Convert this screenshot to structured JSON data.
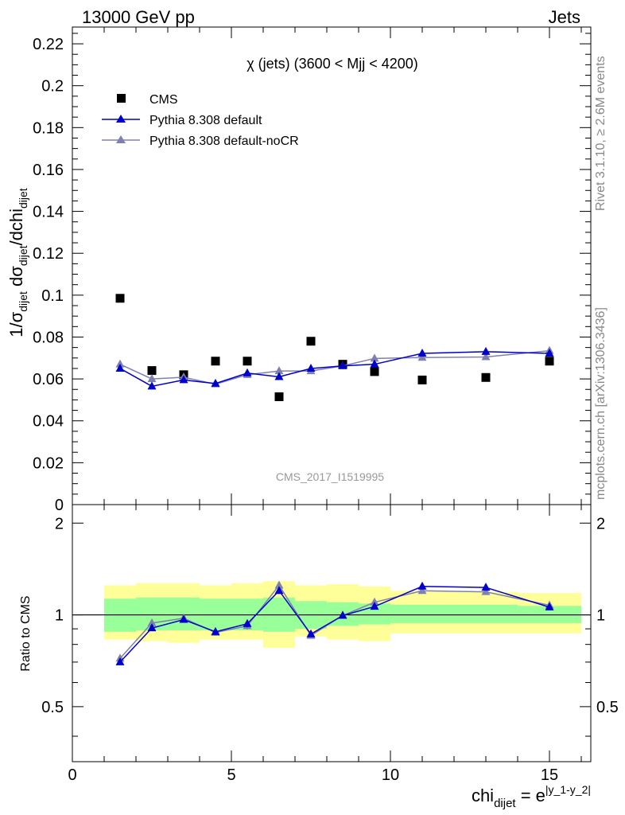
{
  "header": {
    "left": "13000 GeV pp",
    "right": "Jets"
  },
  "side": {
    "rivet": "Rivet 3.1.10, ≥ 2.6M events",
    "mcplots": "mcplots.cern.ch [arXiv:1306.3436]"
  },
  "chart_data": {
    "type": "scatter",
    "title": "χ (jets) (3600 < Mjj < 4200)",
    "watermark": "CMS_2017_I1519995",
    "ylabel_main": {
      "prefix": "1/σ",
      "sub1": "dijet",
      "mid": " dσ",
      "sub2": "dijet",
      "suffix": "/dchi",
      "sub3": "dijet"
    },
    "ylabel_ratio": "Ratio to CMS",
    "xlabel": {
      "base": "chi",
      "sub": "dijet",
      "eq": " = e",
      "sup": "|y_1-y_2|"
    },
    "xlim": [
      0,
      16.3
    ],
    "ylim_main": [
      0,
      0.228
    ],
    "ylim_ratio": [
      0.33,
      2.3
    ],
    "ratio_log_scale": true,
    "xticks": [
      0,
      5,
      10,
      15
    ],
    "xtick_labels": [
      "0",
      "5",
      "10",
      "15"
    ],
    "yticks_main": [
      0,
      0.02,
      0.04,
      0.06,
      0.08,
      0.1,
      0.12,
      0.14,
      0.16,
      0.18,
      0.2,
      0.22
    ],
    "ytick_labels_main": [
      "0",
      "0.02",
      "0.04",
      "0.06",
      "0.08",
      "0.1",
      "0.12",
      "0.14",
      "0.16",
      "0.18",
      "0.2",
      "0.22"
    ],
    "yticks_ratio": [
      0.5,
      1,
      2
    ],
    "ytick_labels_ratio": [
      "0.5",
      "1",
      "2"
    ],
    "legend_position": "top-left",
    "bins": [
      [
        1,
        2
      ],
      [
        2,
        3
      ],
      [
        3,
        4
      ],
      [
        4,
        5
      ],
      [
        5,
        6
      ],
      [
        6,
        7
      ],
      [
        7,
        8
      ],
      [
        8,
        9
      ],
      [
        9,
        10
      ],
      [
        10,
        12
      ],
      [
        12,
        14
      ],
      [
        14,
        16
      ]
    ],
    "ratio_band_inner": [
      [
        0.88,
        1.13
      ],
      [
        0.89,
        1.14
      ],
      [
        0.89,
        1.14
      ],
      [
        0.89,
        1.13
      ],
      [
        0.89,
        1.13
      ],
      [
        0.88,
        1.14
      ],
      [
        0.9,
        1.11
      ],
      [
        0.92,
        1.1
      ],
      [
        0.93,
        1.09
      ],
      [
        0.94,
        1.08
      ],
      [
        0.94,
        1.08
      ],
      [
        0.94,
        1.07
      ]
    ],
    "ratio_band_outer": [
      [
        0.83,
        1.25
      ],
      [
        0.82,
        1.27
      ],
      [
        0.81,
        1.27
      ],
      [
        0.83,
        1.25
      ],
      [
        0.83,
        1.27
      ],
      [
        0.78,
        1.29
      ],
      [
        0.85,
        1.25
      ],
      [
        0.83,
        1.26
      ],
      [
        0.82,
        1.24
      ],
      [
        0.87,
        1.2
      ],
      [
        0.87,
        1.19
      ],
      [
        0.87,
        1.18
      ]
    ],
    "series": [
      {
        "name": "CMS",
        "color": "#000000",
        "marker": "square",
        "x": [
          1.5,
          2.5,
          3.5,
          4.5,
          5.5,
          6.5,
          7.5,
          8.5,
          9.5,
          11.0,
          13.0,
          15.0
        ],
        "y": [
          0.0985,
          0.064,
          0.062,
          0.0685,
          0.0685,
          0.0515,
          0.078,
          0.067,
          0.0635,
          0.0595,
          0.0607,
          0.0685
        ]
      },
      {
        "name": "Pythia 8.308 default",
        "color": "#0000cc",
        "marker": "triangle",
        "x": [
          1.5,
          2.5,
          3.5,
          4.5,
          5.5,
          6.5,
          7.5,
          8.5,
          9.5,
          11.0,
          13.0,
          15.0
        ],
        "y": [
          0.065,
          0.0565,
          0.0595,
          0.0578,
          0.0628,
          0.061,
          0.065,
          0.0662,
          0.067,
          0.0722,
          0.073,
          0.0722
        ],
        "err": [
          0.0012,
          0.0012,
          0.0012,
          0.0012,
          0.0015,
          0.0015,
          0.0015,
          0.0013,
          0.0014,
          0.0008,
          0.0008,
          0.0008
        ],
        "ratio": [
          0.7,
          0.905,
          0.965,
          0.88,
          0.935,
          1.2,
          0.865,
          0.995,
          1.065,
          1.24,
          1.23,
          1.06
        ],
        "ratio_err": [
          0.015,
          0.02,
          0.02,
          0.02,
          0.025,
          0.03,
          0.02,
          0.02,
          0.02,
          0.012,
          0.012,
          0.012
        ]
      },
      {
        "name": "Pythia 8.308 default-noCR",
        "color": "#8080b0",
        "marker": "triangle",
        "x": [
          1.5,
          2.5,
          3.5,
          4.5,
          5.5,
          6.5,
          7.5,
          8.5,
          9.5,
          11.0,
          13.0,
          15.0
        ],
        "y": [
          0.067,
          0.06,
          0.0608,
          0.0575,
          0.062,
          0.0638,
          0.0638,
          0.0662,
          0.0698,
          0.0702,
          0.0705,
          0.0735
        ],
        "err": [
          0.0015,
          0.0013,
          0.0013,
          0.0013,
          0.0015,
          0.0017,
          0.0015,
          0.0014,
          0.0016,
          0.0008,
          0.0008,
          0.0008
        ],
        "ratio": [
          0.72,
          0.94,
          0.975,
          0.875,
          0.92,
          1.25,
          0.855,
          0.995,
          1.1,
          1.2,
          1.19,
          1.075
        ],
        "ratio_err": [
          0.02,
          0.02,
          0.02,
          0.02,
          0.025,
          0.035,
          0.02,
          0.02,
          0.025,
          0.012,
          0.012,
          0.012
        ]
      }
    ]
  }
}
